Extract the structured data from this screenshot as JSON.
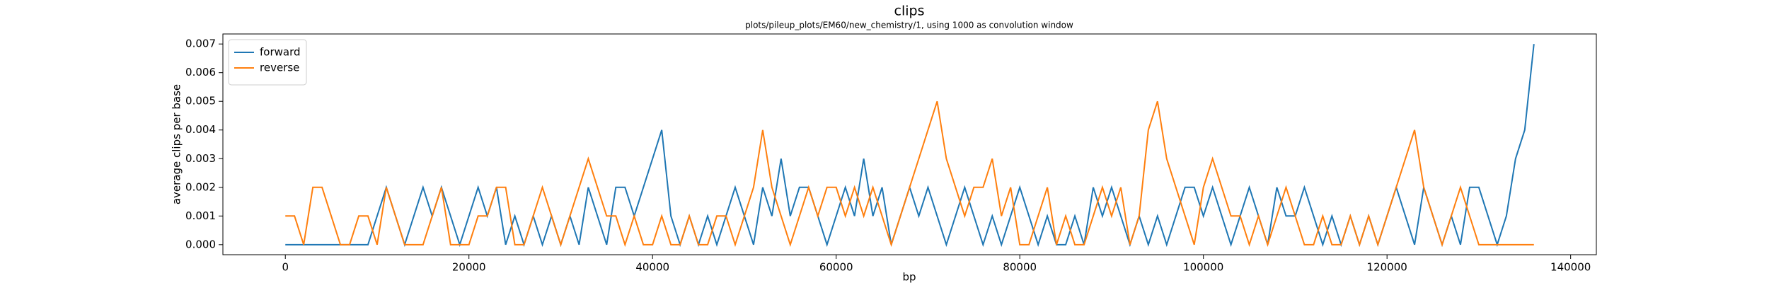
{
  "chart_data": {
    "type": "line",
    "title": "clips",
    "subtitle": "plots/pileup_plots/EM60/new_chemistry/1, using 1000 as convolution window",
    "x_label": "bp",
    "y_label": "average clips per base",
    "legend": "upper left",
    "grid": false,
    "xlim": [
      -6800,
      142800
    ],
    "ylim": [
      -0.00035,
      0.00735
    ],
    "xticks": [
      0,
      20000,
      40000,
      60000,
      80000,
      100000,
      120000,
      140000
    ],
    "yticks": [
      {
        "value": 0,
        "label": "0.000"
      },
      {
        "value": 0.001,
        "label": "0.001"
      },
      {
        "value": 0.002,
        "label": "0.002"
      },
      {
        "value": 0.003,
        "label": "0.003"
      },
      {
        "value": 0.004,
        "label": "0.004"
      },
      {
        "value": 0.005,
        "label": "0.005"
      },
      {
        "value": 0.006,
        "label": "0.006"
      },
      {
        "value": 0.007,
        "label": "0.007"
      }
    ],
    "x": [
      0,
      1000,
      2000,
      3000,
      4000,
      5000,
      6000,
      7000,
      8000,
      9000,
      10000,
      11000,
      12000,
      13000,
      14000,
      15000,
      16000,
      17000,
      18000,
      19000,
      20000,
      21000,
      22000,
      23000,
      24000,
      25000,
      26000,
      27000,
      28000,
      29000,
      30000,
      31000,
      32000,
      33000,
      34000,
      35000,
      36000,
      37000,
      38000,
      39000,
      40000,
      41000,
      42000,
      43000,
      44000,
      45000,
      46000,
      47000,
      48000,
      49000,
      50000,
      51000,
      52000,
      53000,
      54000,
      55000,
      56000,
      57000,
      58000,
      59000,
      60000,
      61000,
      62000,
      63000,
      64000,
      65000,
      66000,
      67000,
      68000,
      69000,
      70000,
      71000,
      72000,
      73000,
      74000,
      75000,
      76000,
      77000,
      78000,
      79000,
      80000,
      81000,
      82000,
      83000,
      84000,
      85000,
      86000,
      87000,
      88000,
      89000,
      90000,
      91000,
      92000,
      93000,
      94000,
      95000,
      96000,
      97000,
      98000,
      99000,
      100000,
      101000,
      102000,
      103000,
      104000,
      105000,
      106000,
      107000,
      108000,
      109000,
      110000,
      111000,
      112000,
      113000,
      114000,
      115000,
      116000,
      117000,
      118000,
      119000,
      120000,
      121000,
      122000,
      123000,
      124000,
      125000,
      126000,
      127000,
      128000,
      129000,
      130000,
      131000,
      132000,
      133000,
      134000,
      135000,
      136000
    ],
    "series": [
      {
        "name": "forward",
        "color": "#1f77b4",
        "values": [
          0,
          0,
          0,
          0,
          0,
          0,
          0,
          0,
          0,
          0,
          0.001,
          0.002,
          0.001,
          0,
          0.001,
          0.002,
          0.001,
          0.002,
          0.001,
          0,
          0.001,
          0.002,
          0.001,
          0.002,
          0,
          0.001,
          0,
          0.001,
          0,
          0.001,
          0,
          0.001,
          0,
          0.002,
          0.001,
          0,
          0.002,
          0.002,
          0.001,
          0.002,
          0.003,
          0.004,
          0.001,
          0,
          0.001,
          0,
          0.001,
          0,
          0.001,
          0.002,
          0.001,
          0,
          0.002,
          0.001,
          0.003,
          0.001,
          0.002,
          0.002,
          0.001,
          0,
          0.001,
          0.002,
          0.001,
          0.003,
          0.001,
          0.002,
          0,
          0.001,
          0.002,
          0.001,
          0.002,
          0.001,
          0,
          0.001,
          0.002,
          0.001,
          0,
          0.001,
          0,
          0.001,
          0.002,
          0.001,
          0,
          0.001,
          0,
          0,
          0.001,
          0,
          0.002,
          0.001,
          0.002,
          0.001,
          0,
          0.001,
          0,
          0.001,
          0,
          0.001,
          0.002,
          0.002,
          0.001,
          0.002,
          0.001,
          0,
          0.001,
          0.002,
          0.001,
          0,
          0.002,
          0.001,
          0.001,
          0.002,
          0.001,
          0,
          0.001,
          0,
          0.001,
          0,
          0.001,
          0,
          0.001,
          0.002,
          0.001,
          0,
          0.002,
          0.001,
          0,
          0.001,
          0,
          0.002,
          0.002,
          0.001,
          0,
          0.001,
          0.003,
          0.004,
          0.007
        ]
      },
      {
        "name": "reverse",
        "color": "#ff7f0e",
        "values": [
          0.001,
          0.001,
          0,
          0.002,
          0.002,
          0.001,
          0,
          0,
          0.001,
          0.001,
          0,
          0.002,
          0.001,
          0,
          0,
          0,
          0.001,
          0.002,
          0,
          0,
          0,
          0.001,
          0.001,
          0.002,
          0.002,
          0,
          0,
          0.001,
          0.002,
          0.001,
          0,
          0.001,
          0.002,
          0.003,
          0.002,
          0.001,
          0.001,
          0,
          0.001,
          0,
          0,
          0.001,
          0,
          0,
          0.001,
          0,
          0,
          0.001,
          0.001,
          0,
          0.001,
          0.002,
          0.004,
          0.002,
          0.001,
          0,
          0.001,
          0.002,
          0.001,
          0.002,
          0.002,
          0.001,
          0.002,
          0.001,
          0.002,
          0.001,
          0,
          0.001,
          0.002,
          0.003,
          0.004,
          0.005,
          0.003,
          0.002,
          0.001,
          0.002,
          0.002,
          0.003,
          0.001,
          0.002,
          0,
          0,
          0.001,
          0.002,
          0,
          0.001,
          0,
          0,
          0.001,
          0.002,
          0.001,
          0.002,
          0,
          0.001,
          0.004,
          0.005,
          0.003,
          0.002,
          0.001,
          0,
          0.002,
          0.003,
          0.002,
          0.001,
          0.001,
          0,
          0.001,
          0,
          0.001,
          0.002,
          0.001,
          0,
          0,
          0.001,
          0,
          0,
          0.001,
          0,
          0.001,
          0,
          0.001,
          0.002,
          0.003,
          0.004,
          0.002,
          0.001,
          0,
          0.001,
          0.002,
          0.001,
          0,
          0,
          0,
          0,
          0,
          0,
          0
        ]
      }
    ]
  }
}
